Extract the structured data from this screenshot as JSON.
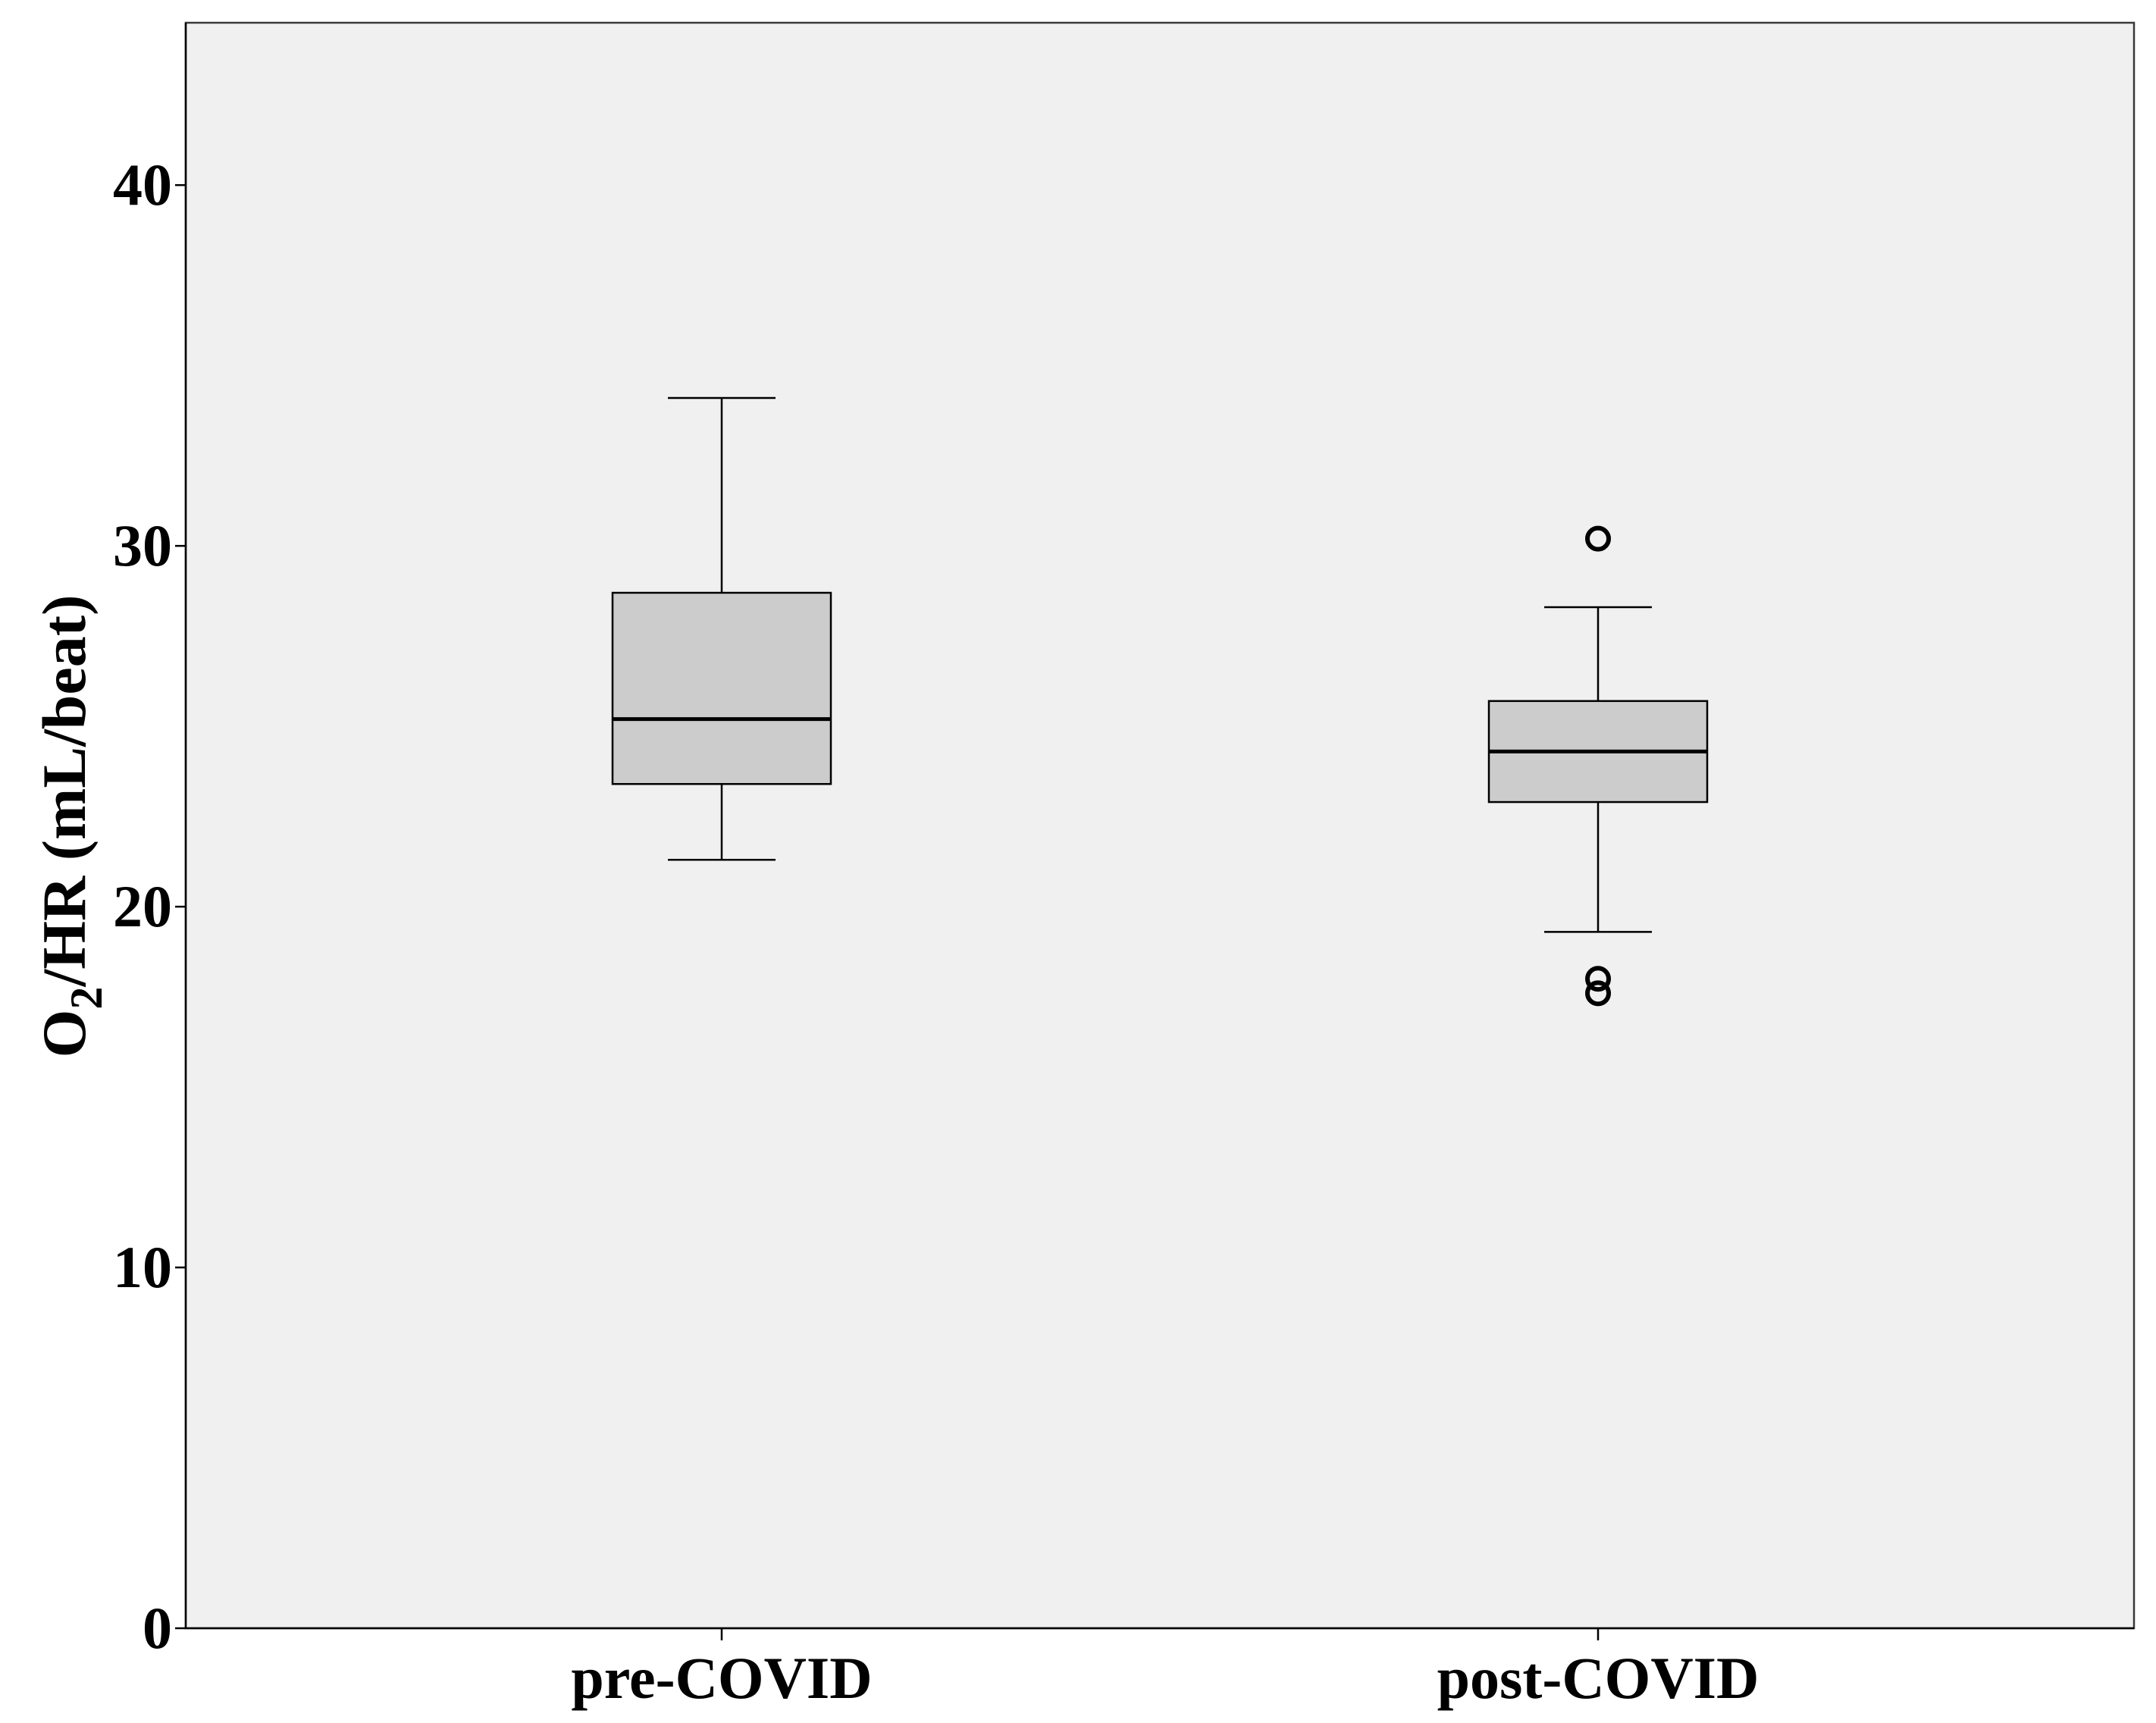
{
  "chart_data": {
    "type": "boxplot",
    "title": "",
    "xlabel": "",
    "ylabel": {
      "prefix": "O",
      "subscript": "2",
      "suffix": "/HR (mL/beat)"
    },
    "ylim": [
      0,
      44.5
    ],
    "yticks": [
      0,
      10,
      20,
      30,
      40
    ],
    "categories": [
      "pre-COVID",
      "post-COVID"
    ],
    "boxes": [
      {
        "category": "pre-COVID",
        "whisker_low": 21.3,
        "q1": 23.4,
        "median": 25.2,
        "q3": 28.7,
        "whisker_high": 34.1,
        "outliers": []
      },
      {
        "category": "post-COVID",
        "whisker_low": 19.3,
        "q1": 22.9,
        "median": 24.3,
        "q3": 25.7,
        "whisker_high": 28.3,
        "outliers": [
          30.2,
          18.0,
          17.6
        ]
      }
    ],
    "grid": false,
    "colors": {
      "plot_background": "#f0f0f0",
      "box_fill": "#cccccc",
      "line": "#000000"
    }
  }
}
